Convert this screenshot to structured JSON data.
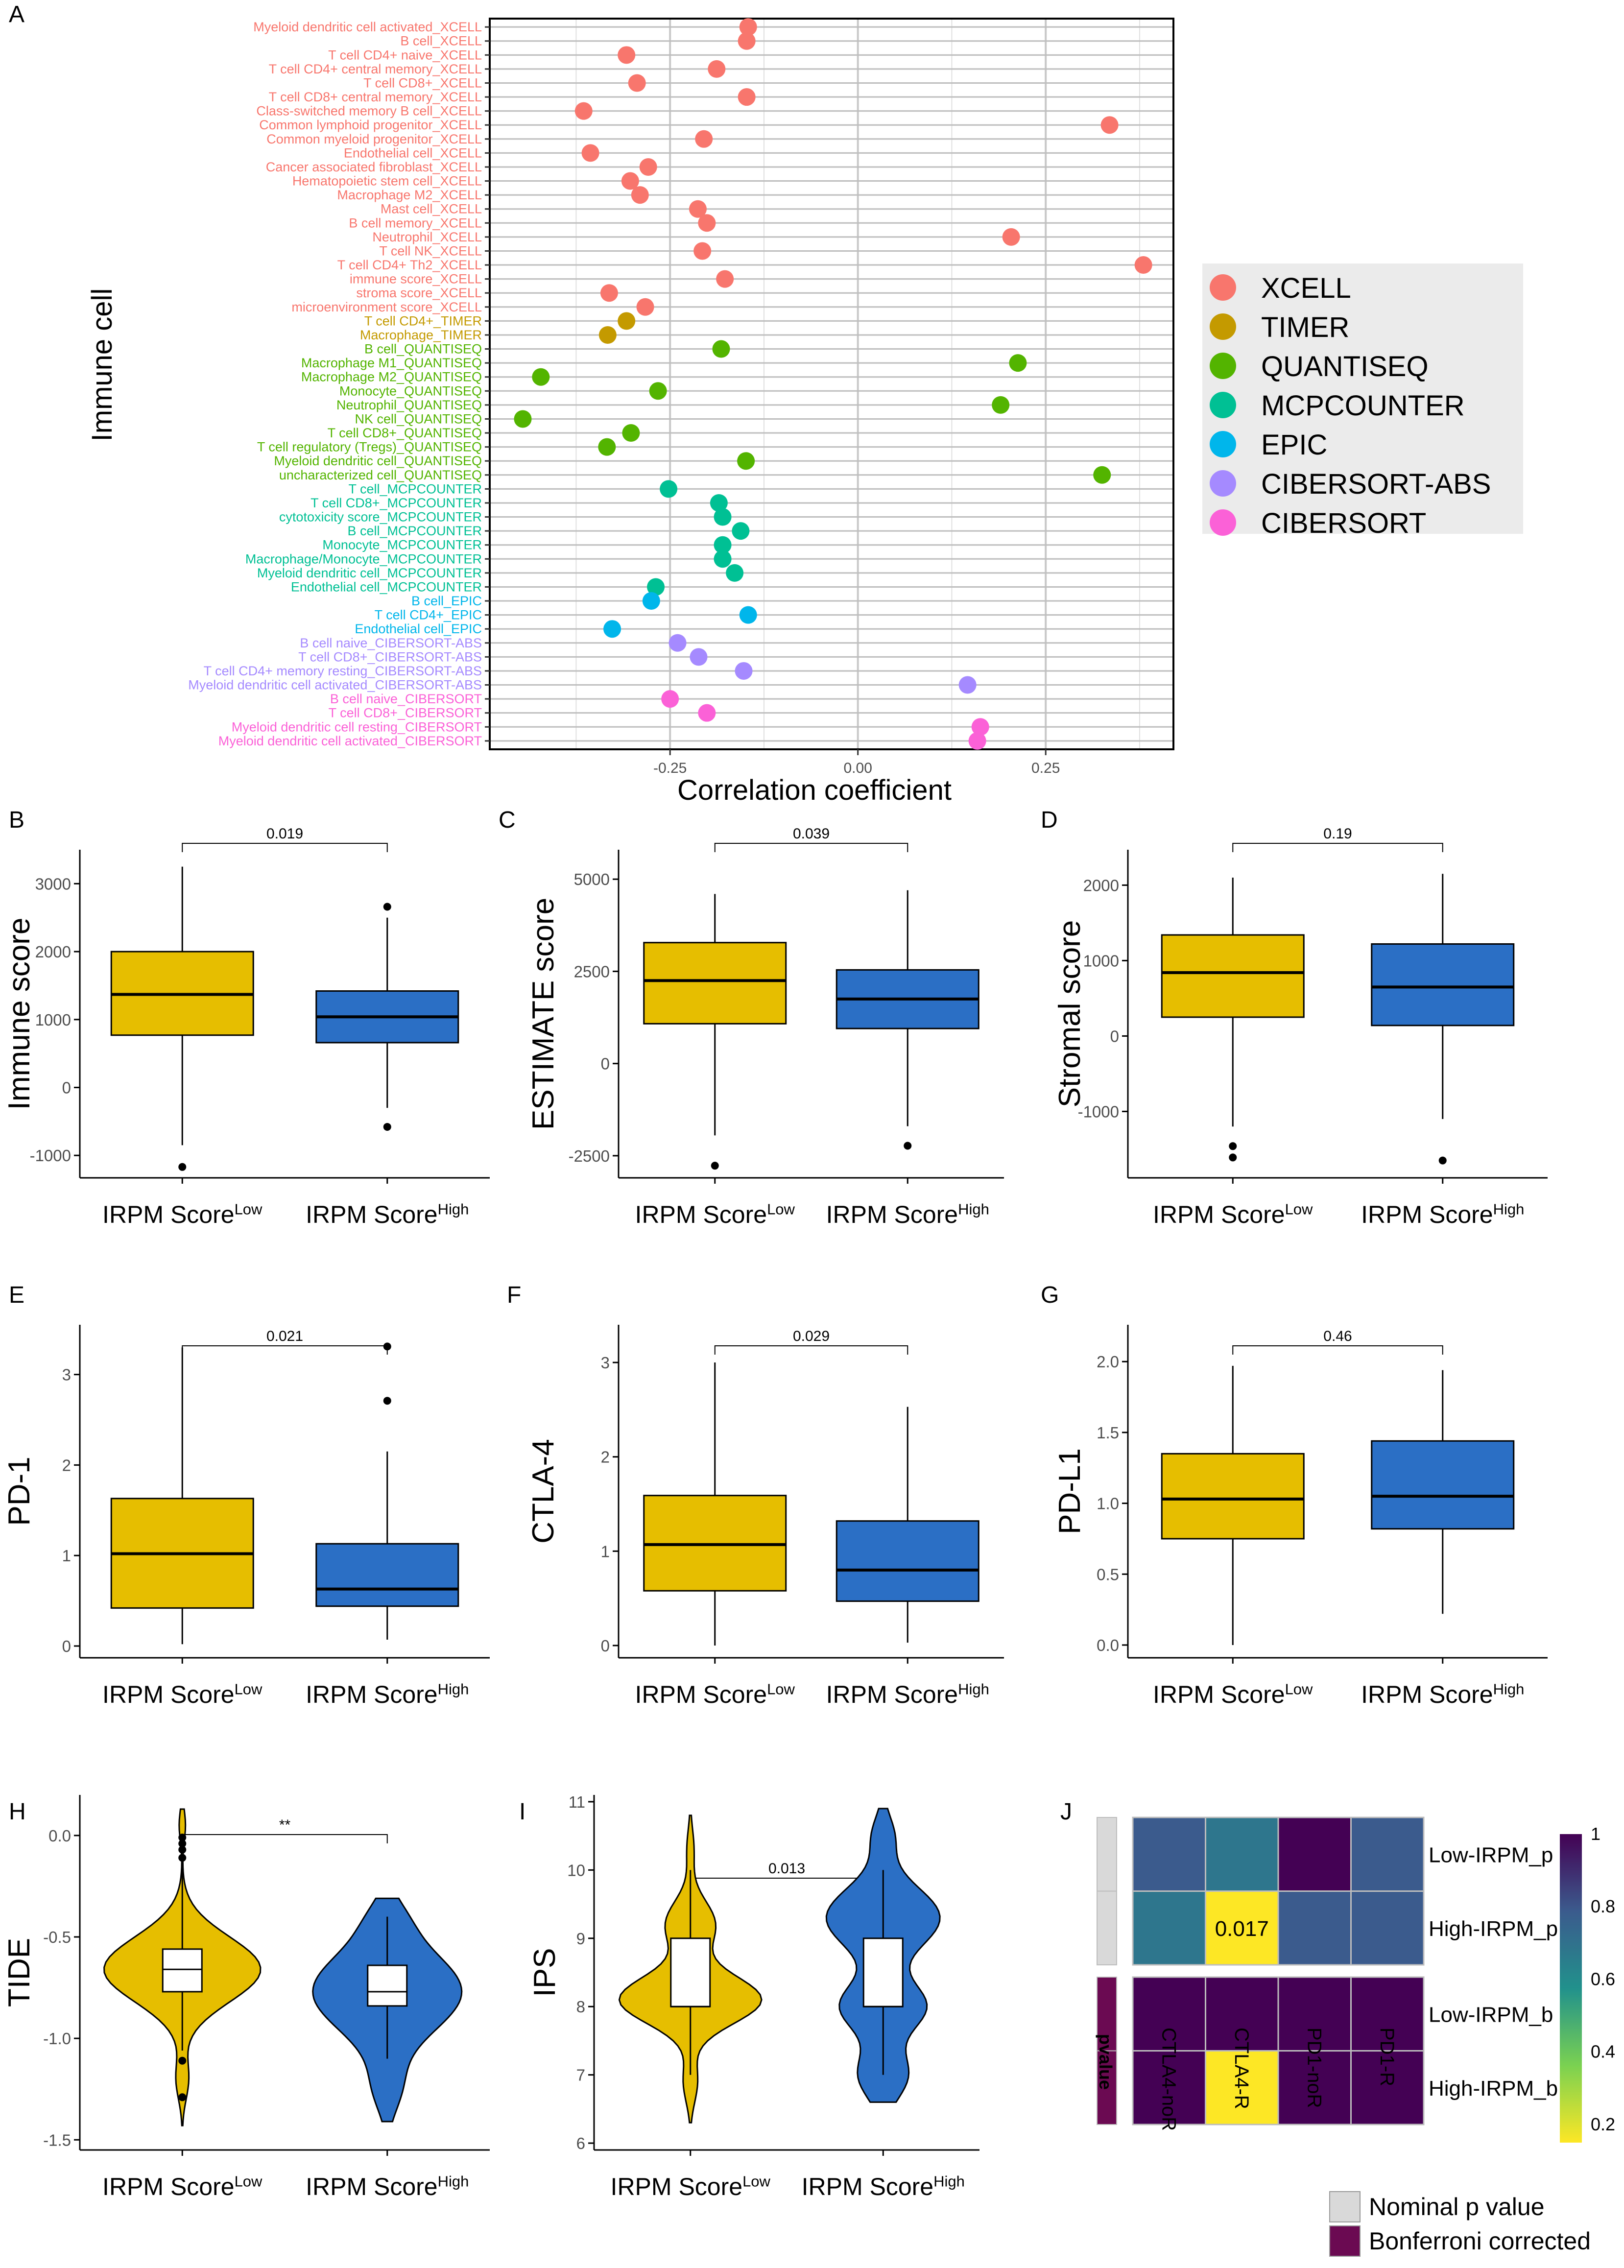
{
  "panel_labels": {
    "A": "A",
    "B": "B",
    "C": "C",
    "D": "D",
    "E": "E",
    "F": "F",
    "G": "G",
    "H": "H",
    "I": "I",
    "J": "J"
  },
  "group_low": {
    "base": "IRPM Score",
    "sup": "Low"
  },
  "group_high": {
    "base": "IRPM Score",
    "sup": "High"
  },
  "colors": {
    "low": "#E6BE00",
    "high": "#2B6FC5",
    "XCELL": "#F8766D",
    "TIMER": "#C49A00",
    "QUANTISEQ": "#53B400",
    "MCPCOUNTER": "#00C094",
    "EPIC": "#00B6EB",
    "CIBERSORT-ABS": "#A58AFF",
    "CIBERSORT": "#FB61D7"
  },
  "chart_data": [
    {
      "panel": "A",
      "type": "scatter",
      "xlabel": "Correlation coefficient",
      "ylabel": "Immune cell",
      "xlim": [
        -0.49,
        0.42
      ],
      "xticks": [
        -0.25,
        0.0,
        0.25
      ],
      "xtick_labels": [
        "-0.25",
        "0.00",
        "0.25"
      ],
      "grid": true,
      "legend_placement": "right",
      "legend": [
        "XCELL",
        "TIMER",
        "QUANTISEQ",
        "MCPCOUNTER",
        "EPIC",
        "CIBERSORT-ABS",
        "CIBERSORT"
      ],
      "points": [
        {
          "cell": "Myeloid dendritic cell activated_XCELL",
          "method": "XCELL",
          "value": -0.146
        },
        {
          "cell": "B cell_XCELL",
          "method": "XCELL",
          "value": -0.148
        },
        {
          "cell": "T cell CD4+ naive_XCELL",
          "method": "XCELL",
          "value": -0.308
        },
        {
          "cell": "T cell CD4+ central memory_XCELL",
          "method": "XCELL",
          "value": -0.188
        },
        {
          "cell": "T cell CD8+_XCELL",
          "method": "XCELL",
          "value": -0.294
        },
        {
          "cell": "T cell CD8+ central memory_XCELL",
          "method": "XCELL",
          "value": -0.148
        },
        {
          "cell": "Class-switched memory B cell_XCELL",
          "method": "XCELL",
          "value": -0.365
        },
        {
          "cell": "Common lymphoid progenitor_XCELL",
          "method": "XCELL",
          "value": 0.335
        },
        {
          "cell": "Common myeloid progenitor_XCELL",
          "method": "XCELL",
          "value": -0.205
        },
        {
          "cell": "Endothelial cell_XCELL",
          "method": "XCELL",
          "value": -0.356
        },
        {
          "cell": "Cancer associated fibroblast_XCELL",
          "method": "XCELL",
          "value": -0.279
        },
        {
          "cell": "Hematopoietic stem cell_XCELL",
          "method": "XCELL",
          "value": -0.303
        },
        {
          "cell": "Macrophage M2_XCELL",
          "method": "XCELL",
          "value": -0.29
        },
        {
          "cell": "Mast cell_XCELL",
          "method": "XCELL",
          "value": -0.213
        },
        {
          "cell": "B cell memory_XCELL",
          "method": "XCELL",
          "value": -0.201
        },
        {
          "cell": "Neutrophil_XCELL",
          "method": "XCELL",
          "value": 0.204
        },
        {
          "cell": "T cell NK_XCELL",
          "method": "XCELL",
          "value": -0.207
        },
        {
          "cell": "T cell CD4+ Th2_XCELL",
          "method": "XCELL",
          "value": 0.38
        },
        {
          "cell": "immune score_XCELL",
          "method": "XCELL",
          "value": -0.177
        },
        {
          "cell": "stroma score_XCELL",
          "method": "XCELL",
          "value": -0.331
        },
        {
          "cell": "microenvironment score_XCELL",
          "method": "XCELL",
          "value": -0.283
        },
        {
          "cell": "T cell CD4+_TIMER",
          "method": "TIMER",
          "value": -0.308
        },
        {
          "cell": "Macrophage_TIMER",
          "method": "TIMER",
          "value": -0.333
        },
        {
          "cell": "B cell_QUANTISEQ",
          "method": "QUANTISEQ",
          "value": -0.182
        },
        {
          "cell": "Macrophage M1_QUANTISEQ",
          "method": "QUANTISEQ",
          "value": 0.213
        },
        {
          "cell": "Macrophage M2_QUANTISEQ",
          "method": "QUANTISEQ",
          "value": -0.422
        },
        {
          "cell": "Monocyte_QUANTISEQ",
          "method": "QUANTISEQ",
          "value": -0.266
        },
        {
          "cell": "Neutrophil_QUANTISEQ",
          "method": "QUANTISEQ",
          "value": 0.19
        },
        {
          "cell": "NK cell_QUANTISEQ",
          "method": "QUANTISEQ",
          "value": -0.446
        },
        {
          "cell": "T cell CD8+_QUANTISEQ",
          "method": "QUANTISEQ",
          "value": -0.302
        },
        {
          "cell": "T cell regulatory (Tregs)_QUANTISEQ",
          "method": "QUANTISEQ",
          "value": -0.334
        },
        {
          "cell": "Myeloid dendritic cell_QUANTISEQ",
          "method": "QUANTISEQ",
          "value": -0.149
        },
        {
          "cell": "uncharacterized cell_QUANTISEQ",
          "method": "QUANTISEQ",
          "value": 0.325
        },
        {
          "cell": "T cell_MCPCOUNTER",
          "method": "MCPCOUNTER",
          "value": -0.252
        },
        {
          "cell": "T cell CD8+_MCPCOUNTER",
          "method": "MCPCOUNTER",
          "value": -0.185
        },
        {
          "cell": "cytotoxicity score_MCPCOUNTER",
          "method": "MCPCOUNTER",
          "value": -0.18
        },
        {
          "cell": "B cell_MCPCOUNTER",
          "method": "MCPCOUNTER",
          "value": -0.156
        },
        {
          "cell": "Monocyte_MCPCOUNTER",
          "method": "MCPCOUNTER",
          "value": -0.18
        },
        {
          "cell": "Macrophage/Monocyte_MCPCOUNTER",
          "method": "MCPCOUNTER",
          "value": -0.18
        },
        {
          "cell": "Myeloid dendritic cell_MCPCOUNTER",
          "method": "MCPCOUNTER",
          "value": -0.164
        },
        {
          "cell": "Endothelial cell_MCPCOUNTER",
          "method": "MCPCOUNTER",
          "value": -0.269
        },
        {
          "cell": "B cell_EPIC",
          "method": "EPIC",
          "value": -0.275
        },
        {
          "cell": "T cell CD4+_EPIC",
          "method": "EPIC",
          "value": -0.146
        },
        {
          "cell": "Endothelial cell_EPIC",
          "method": "EPIC",
          "value": -0.327
        },
        {
          "cell": "B cell naive_CIBERSORT-ABS",
          "method": "CIBERSORT-ABS",
          "value": -0.24
        },
        {
          "cell": "T cell CD8+_CIBERSORT-ABS",
          "method": "CIBERSORT-ABS",
          "value": -0.212
        },
        {
          "cell": "T cell CD4+ memory resting_CIBERSORT-ABS",
          "method": "CIBERSORT-ABS",
          "value": -0.152
        },
        {
          "cell": "Myeloid dendritic cell activated_CIBERSORT-ABS",
          "method": "CIBERSORT-ABS",
          "value": 0.146
        },
        {
          "cell": "B cell naive_CIBERSORT",
          "method": "CIBERSORT",
          "value": -0.25
        },
        {
          "cell": "T cell CD8+_CIBERSORT",
          "method": "CIBERSORT",
          "value": -0.201
        },
        {
          "cell": "Myeloid dendritic cell resting_CIBERSORT",
          "method": "CIBERSORT",
          "value": 0.163
        },
        {
          "cell": "Myeloid dendritic cell activated_CIBERSORT",
          "method": "CIBERSORT",
          "value": 0.159
        }
      ]
    },
    {
      "panel": "B",
      "type": "box",
      "ylabel": "Immune score",
      "yticks": [
        -1000,
        0,
        1000,
        2000,
        3000
      ],
      "ylim": [
        -1330,
        3500
      ],
      "pvalue": "0.019",
      "categories": [
        "Low",
        "High"
      ],
      "boxes": [
        {
          "q1": 770,
          "median": 1370,
          "q3": 2000,
          "whisker_low": -850,
          "whisker_high": 3250,
          "outliers": [
            -1170
          ]
        },
        {
          "q1": 660,
          "median": 1040,
          "q3": 1420,
          "whisker_low": -300,
          "whisker_high": 2500,
          "outliers": [
            2660,
            -580
          ]
        }
      ]
    },
    {
      "panel": "C",
      "type": "box",
      "ylabel": "ESTIMATE score",
      "yticks": [
        -2500,
        0,
        2500,
        5000
      ],
      "ylim": [
        -3100,
        5800
      ],
      "pvalue": "0.039",
      "categories": [
        "Low",
        "High"
      ],
      "boxes": [
        {
          "q1": 1080,
          "median": 2250,
          "q3": 3280,
          "whisker_low": -1950,
          "whisker_high": 4600,
          "outliers": [
            -2770
          ]
        },
        {
          "q1": 950,
          "median": 1750,
          "q3": 2540,
          "whisker_low": -1700,
          "whisker_high": 4700,
          "outliers": [
            -2230
          ]
        }
      ]
    },
    {
      "panel": "D",
      "type": "box",
      "ylabel": "Stromal score",
      "yticks": [
        -1000,
        0,
        1000,
        2000
      ],
      "ylim": [
        -1880,
        2470
      ],
      "pvalue": "0.19",
      "categories": [
        "Low",
        "High"
      ],
      "boxes": [
        {
          "q1": 250,
          "median": 840,
          "q3": 1340,
          "whisker_low": -1200,
          "whisker_high": 2100,
          "outliers": [
            -1460,
            -1610
          ]
        },
        {
          "q1": 140,
          "median": 650,
          "q3": 1220,
          "whisker_low": -1100,
          "whisker_high": 2150,
          "outliers": [
            -1650
          ]
        }
      ]
    },
    {
      "panel": "E",
      "type": "box",
      "ylabel": "PD-1",
      "yticks": [
        0,
        1,
        2,
        3
      ],
      "ylim": [
        -0.13,
        3.55
      ],
      "pvalue": "0.021",
      "categories": [
        "Low",
        "High"
      ],
      "boxes": [
        {
          "q1": 0.42,
          "median": 1.02,
          "q3": 1.63,
          "whisker_low": 0.02,
          "whisker_high": 3.3,
          "outliers": []
        },
        {
          "q1": 0.44,
          "median": 0.63,
          "q3": 1.13,
          "whisker_low": 0.07,
          "whisker_high": 2.15,
          "outliers": [
            3.31,
            2.71
          ]
        }
      ]
    },
    {
      "panel": "F",
      "type": "box",
      "ylabel": "CTLA-4",
      "yticks": [
        0,
        1,
        2,
        3
      ],
      "ylim": [
        -0.13,
        3.4
      ],
      "pvalue": "0.029",
      "categories": [
        "Low",
        "High"
      ],
      "boxes": [
        {
          "q1": 0.58,
          "median": 1.07,
          "q3": 1.59,
          "whisker_low": 0.0,
          "whisker_high": 3.0,
          "outliers": []
        },
        {
          "q1": 0.47,
          "median": 0.8,
          "q3": 1.32,
          "whisker_low": 0.03,
          "whisker_high": 2.53,
          "outliers": []
        }
      ]
    },
    {
      "panel": "G",
      "type": "box",
      "ylabel": "PD-L1",
      "yticks": [
        0.0,
        0.5,
        1.0,
        1.5,
        2.0
      ],
      "ytick_labels": [
        "0.0",
        "0.5",
        "1.0",
        "1.5",
        "2.0"
      ],
      "ylim": [
        -0.09,
        2.26
      ],
      "pvalue": "0.46",
      "categories": [
        "Low",
        "High"
      ],
      "boxes": [
        {
          "q1": 0.75,
          "median": 1.03,
          "q3": 1.35,
          "whisker_low": 0.0,
          "whisker_high": 1.97,
          "outliers": []
        },
        {
          "q1": 0.82,
          "median": 1.05,
          "q3": 1.44,
          "whisker_low": 0.22,
          "whisker_high": 1.94,
          "outliers": []
        }
      ]
    },
    {
      "panel": "H",
      "type": "violin",
      "ylabel": "TIDE",
      "yticks": [
        0.0,
        -0.5,
        -1.0,
        -1.5
      ],
      "ytick_labels": [
        "0.0",
        "-0.5",
        "-1.0",
        "-1.5"
      ],
      "ylim": [
        -1.55,
        0.2
      ],
      "pvalue": "**",
      "categories": [
        "Low",
        "High"
      ],
      "boxes": [
        {
          "q1": -0.77,
          "median": -0.66,
          "q3": -0.56,
          "whisker_low": -1.06,
          "whisker_high": -0.12,
          "outliers": [
            -0.01,
            -0.04,
            -0.07,
            -0.11,
            -1.11,
            -1.29
          ],
          "min": -1.43,
          "max": 0.13
        },
        {
          "q1": -0.84,
          "median": -0.77,
          "q3": -0.64,
          "whisker_low": -1.1,
          "whisker_high": -0.4,
          "outliers": [],
          "min": -1.41,
          "max": -0.31
        }
      ]
    },
    {
      "panel": "I",
      "type": "violin",
      "ylabel": "IPS",
      "yticks": [
        6,
        7,
        8,
        9,
        10,
        11
      ],
      "ylim": [
        5.9,
        11.1
      ],
      "pvalue": "0.013",
      "categories": [
        "Low",
        "High"
      ],
      "boxes": [
        {
          "q1": 8.0,
          "median": 8.0,
          "q3": 9.0,
          "whisker_low": 7.0,
          "whisker_high": 10.0,
          "outliers": [],
          "min": 6.3,
          "max": 10.8
        },
        {
          "q1": 8.0,
          "median": 8.0,
          "q3": 9.0,
          "whisker_low": 7.0,
          "whisker_high": 10.0,
          "outliers": [],
          "min": 6.6,
          "max": 10.9
        }
      ]
    },
    {
      "panel": "J",
      "type": "heatmap",
      "columns": [
        "CTLA4-noR",
        "CTLA4-R",
        "PD1-noR",
        "PD1-R"
      ],
      "rows": [
        "Low-IRPM_p",
        "High-IRPM_p",
        "Low-IRPM_b",
        "High-IRPM_b"
      ],
      "values": [
        [
          0.8,
          0.7,
          1.0,
          0.8
        ],
        [
          0.7,
          0.017,
          0.8,
          0.8
        ],
        [
          1.0,
          1.0,
          1.0,
          1.0
        ],
        [
          1.0,
          0.1,
          1.0,
          1.0
        ]
      ],
      "cell_label": {
        "row": 1,
        "col": 1,
        "text": "0.017"
      },
      "side_annotation_title": "pvalue",
      "side_annotation_rows": [
        "Nominal p value",
        "Nominal p value",
        "Bonferroni corrected",
        "Bonferroni corrected"
      ],
      "colorbar_ticks": [
        1,
        0.8,
        0.6,
        0.4,
        0.2
      ],
      "colorbar_tick_labels": [
        "1",
        "0.8",
        "0.6",
        "0.4",
        "0.2"
      ],
      "colorbar_colors": [
        "#440154",
        "#3B5B8D",
        "#21918C",
        "#7AD151",
        "#FDE725"
      ],
      "legend": [
        {
          "label": "Nominal p value",
          "color": "#D9D9D9"
        },
        {
          "label": "Bonferroni corrected",
          "color": "#6B0A52"
        }
      ]
    }
  ]
}
